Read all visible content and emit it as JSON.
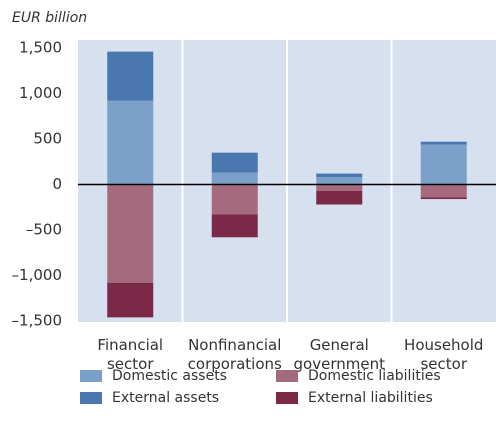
{
  "chart_data": {
    "type": "bar",
    "stacked": true,
    "y_axis_label": "EUR billion",
    "categories": [
      "Financial sector",
      "Nonfinancial corporations",
      "General government",
      "Household sector"
    ],
    "series": [
      {
        "name": "Domestic assets",
        "color": "#7ba0c9",
        "values": [
          920,
          130,
          80,
          440
        ]
      },
      {
        "name": "External assets",
        "color": "#4a78ae",
        "values": [
          540,
          220,
          40,
          30
        ]
      },
      {
        "name": "Domestic liabilities",
        "color": "#a66a7e",
        "values": [
          -1080,
          -330,
          -70,
          -140
        ]
      },
      {
        "name": "External liabilities",
        "color": "#7b2946",
        "values": [
          -380,
          -250,
          -150,
          -20
        ]
      }
    ],
    "ylim": [
      -1500,
      1500
    ],
    "yticks": [
      {
        "value": -1500,
        "label": "–1,500"
      },
      {
        "value": -1000,
        "label": "–1,000"
      },
      {
        "value": -500,
        "label": "–500"
      },
      0,
      500,
      {
        "value": 1000,
        "label": "1,000"
      },
      {
        "value": 1500,
        "label": "1,500"
      }
    ],
    "grid": false
  }
}
